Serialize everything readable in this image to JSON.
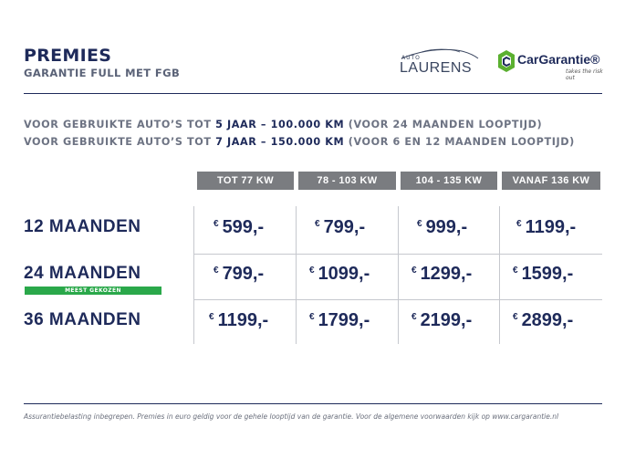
{
  "header": {
    "title": "PREMIES",
    "subtitle": "GARANTIE FULL MET FGB",
    "logo_laurens_small": "AUTO",
    "logo_laurens_big": "LAURENS",
    "logo_cg_name": "CarGarantie®",
    "logo_cg_tagline": "takes the risk out"
  },
  "conditions": [
    {
      "pre": "VOOR GEBRUIKTE AUTO’S TOT ",
      "bold": "5 JAAR – 100.000 KM",
      "post": " (VOOR 24 MAANDEN LOOPTIJD)"
    },
    {
      "pre": "VOOR GEBRUIKTE AUTO’S TOT ",
      "bold": "7 JAAR – 150.000 KM",
      "post": " (VOOR 6 EN 12 MAANDEN LOOPTIJD)"
    }
  ],
  "table": {
    "columns": [
      "TOT 77 KW",
      "78 - 103 KW",
      "104 - 135 KW",
      "VANAF 136 KW"
    ],
    "currency": "€",
    "badge": "MEEST GEKOZEN",
    "rows": [
      {
        "label": "12 MAANDEN",
        "prices": [
          "599,-",
          "799,-",
          "999,-",
          "1199,-"
        ]
      },
      {
        "label": "24 MAANDEN",
        "prices": [
          "799,-",
          "1099,-",
          "1299,-",
          "1599,-"
        ]
      },
      {
        "label": "36 MAANDEN",
        "prices": [
          "1199,-",
          "1799,-",
          "2199,-",
          "2899,-"
        ]
      }
    ]
  },
  "footer": "Assurantiebelasting inbegrepen. Premies in euro geldig voor de gehele looptijd van de garantie. Voor de algemene voorwaarden kijk op www.cargarantie.nl",
  "colors": {
    "navy": "#1e2a5a",
    "header_gray": "#7a7c80",
    "badge_green": "#2aa84a",
    "cg_green": "#5bb030"
  }
}
